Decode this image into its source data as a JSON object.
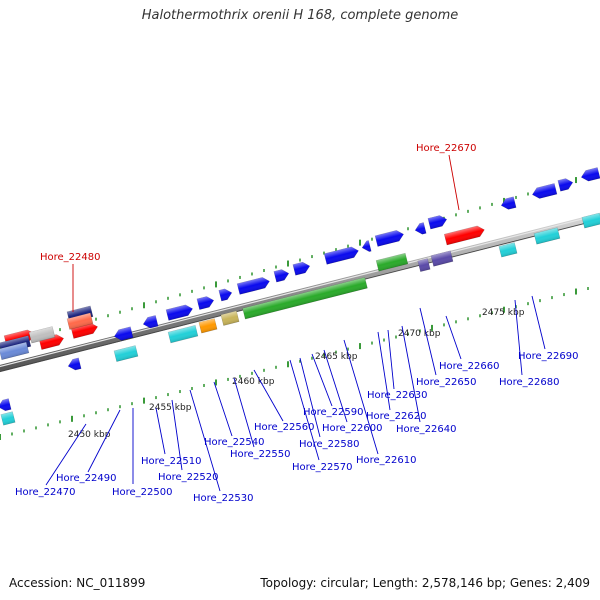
{
  "title": "Halothermothrix orenii H 168, complete genome",
  "footer": {
    "accession": "Accession: NC_011899",
    "topology": "Topology: circular; Length: 2,578,146 bp; Genes: 2,409"
  },
  "colors": {
    "locus_normal": "#0000cc",
    "locus_highlight": "#cc0000",
    "backbone": "#8c8c8c",
    "dotted_guide": "#3a9a3a"
  },
  "scale_labels": [
    "2450 kbp",
    "2455 kbp",
    "2460 kbp",
    "2465 kbp",
    "2470 kbp",
    "2475 kbp"
  ],
  "loci": [
    {
      "label": "Hore_22480",
      "highlight": true
    },
    {
      "label": "Hore_22670",
      "highlight": true
    },
    {
      "label": "Hore_22470",
      "highlight": false
    },
    {
      "label": "Hore_22490",
      "highlight": false
    },
    {
      "label": "Hore_22500",
      "highlight": false
    },
    {
      "label": "Hore_22510",
      "highlight": false
    },
    {
      "label": "Hore_22520",
      "highlight": false
    },
    {
      "label": "Hore_22530",
      "highlight": false
    },
    {
      "label": "Hore_22540",
      "highlight": false
    },
    {
      "label": "Hore_22550",
      "highlight": false
    },
    {
      "label": "Hore_22560",
      "highlight": false
    },
    {
      "label": "Hore_22570",
      "highlight": false
    },
    {
      "label": "Hore_22580",
      "highlight": false
    },
    {
      "label": "Hore_22590",
      "highlight": false
    },
    {
      "label": "Hore_22600",
      "highlight": false
    },
    {
      "label": "Hore_22610",
      "highlight": false
    },
    {
      "label": "Hore_22620",
      "highlight": false
    },
    {
      "label": "Hore_22630",
      "highlight": false
    },
    {
      "label": "Hore_22640",
      "highlight": false
    },
    {
      "label": "Hore_22650",
      "highlight": false
    },
    {
      "label": "Hore_22660",
      "highlight": false
    },
    {
      "label": "Hore_22680",
      "highlight": false
    },
    {
      "label": "Hore_22690",
      "highlight": false
    }
  ]
}
